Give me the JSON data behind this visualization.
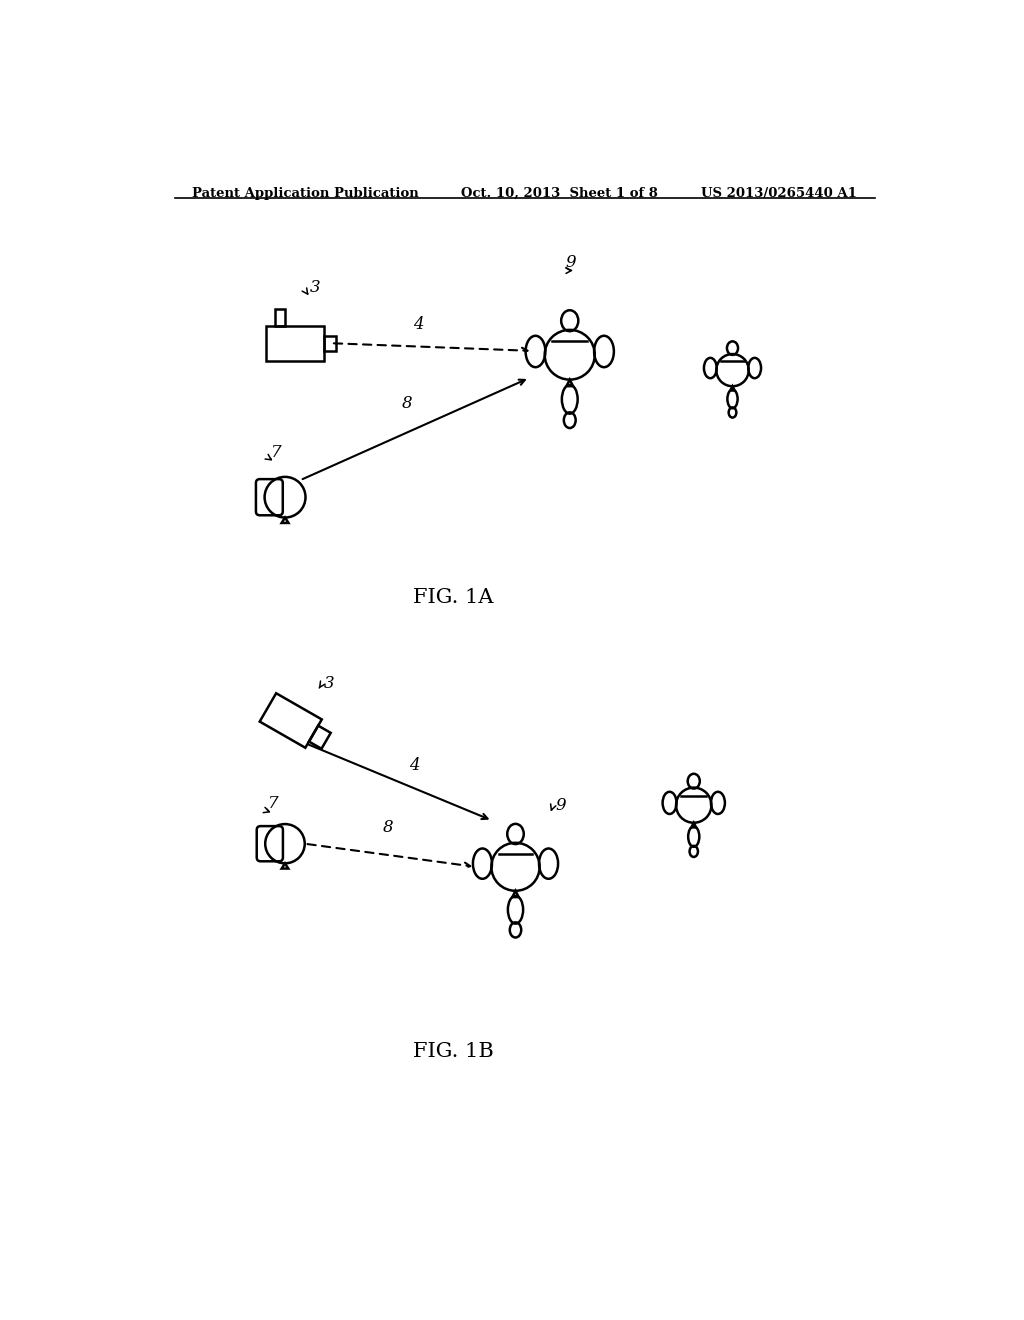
{
  "title_left": "Patent Application Publication",
  "title_center": "Oct. 10, 2013  Sheet 1 of 8",
  "title_right": "US 2013/0265440 A1",
  "fig1a_label": "FIG. 1A",
  "fig1b_label": "FIG. 1B",
  "bg_color": "#ffffff",
  "line_color": "#000000"
}
